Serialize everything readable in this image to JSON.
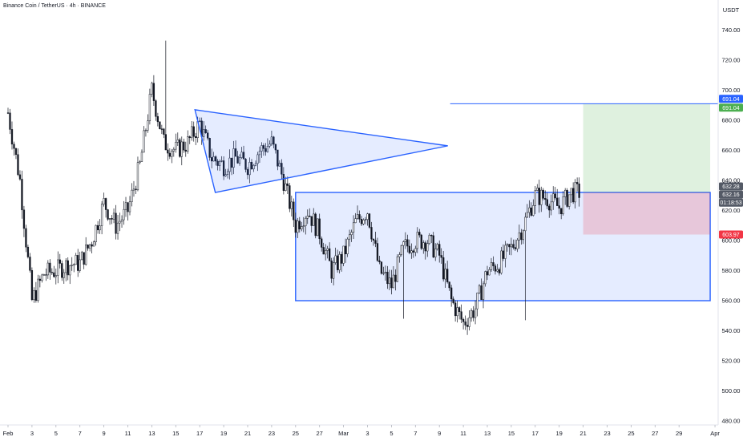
{
  "header": {
    "title": "Binance Coin / TetherUS · 4h · BINANCE"
  },
  "price_axis": {
    "currency": "USDT",
    "ticks": [
      "480.00",
      "500.00",
      "520.00",
      "540.00",
      "560.00",
      "580.00",
      "600.00",
      "620.00",
      "640.00",
      "660.00",
      "680.00",
      "700.00",
      "720.00",
      "740.00"
    ],
    "tag_target": "691.04",
    "tag_alert": "691.04",
    "tag_last": "632.28",
    "tag_current": "632.16",
    "tag_countdown": "01:18:53",
    "tag_stop": "603.97"
  },
  "time_axis": {
    "labels": [
      "Feb",
      "3",
      "5",
      "7",
      "9",
      "11",
      "13",
      "15",
      "17",
      "19",
      "21",
      "23",
      "25",
      "27",
      "Mar",
      "3",
      "5",
      "7",
      "9",
      "11",
      "13",
      "15",
      "17",
      "19",
      "21",
      "23",
      "25",
      "27",
      "29",
      "Apr"
    ]
  },
  "colors": {
    "up": "#131722",
    "down": "#131722",
    "pattern": "#2962ff",
    "pattern_fill": "rgba(41,98,255,0.12)",
    "target_fill": "rgba(76,175,80,0.18)",
    "stop_fill": "rgba(242,54,69,0.2)",
    "tag_blue": "#2962ff",
    "tag_green": "#4caf50",
    "tag_red": "#f23645",
    "tag_grey": "#545a66"
  },
  "chart_data": {
    "type": "candlestick",
    "symbol": "BNB/USDT",
    "interval": "4h",
    "ylim": [
      475,
      755
    ],
    "xlim": [
      "Feb 1",
      "Apr 1"
    ],
    "closes_by_day": [
      {
        "day": "Feb 1",
        "close": 685
      },
      {
        "day": "Feb 2",
        "close": 640
      },
      {
        "day": "Feb 3",
        "close": 560
      },
      {
        "day": "Feb 4",
        "close": 578
      },
      {
        "day": "Feb 5",
        "close": 580
      },
      {
        "day": "Feb 6",
        "close": 584
      },
      {
        "day": "Feb 7",
        "close": 585
      },
      {
        "day": "Feb 8",
        "close": 600
      },
      {
        "day": "Feb 9",
        "close": 625
      },
      {
        "day": "Feb 10",
        "close": 610
      },
      {
        "day": "Feb 11",
        "close": 620
      },
      {
        "day": "Feb 12",
        "close": 650
      },
      {
        "day": "Feb 13",
        "close": 700
      },
      {
        "day": "Feb 14",
        "close": 665
      },
      {
        "day": "Feb 15",
        "close": 660
      },
      {
        "day": "Feb 16",
        "close": 665
      },
      {
        "day": "Feb 17",
        "close": 678
      },
      {
        "day": "Feb 18",
        "close": 655
      },
      {
        "day": "Feb 19",
        "close": 650
      },
      {
        "day": "Feb 20",
        "close": 655
      },
      {
        "day": "Feb 21",
        "close": 650
      },
      {
        "day": "Feb 22",
        "close": 660
      },
      {
        "day": "Feb 23",
        "close": 665
      },
      {
        "day": "Feb 24",
        "close": 640
      },
      {
        "day": "Feb 25",
        "close": 610
      },
      {
        "day": "Feb 26",
        "close": 620
      },
      {
        "day": "Feb 27",
        "close": 605
      },
      {
        "day": "Feb 28",
        "close": 580
      },
      {
        "day": "Mar 1",
        "close": 590
      },
      {
        "day": "Mar 2",
        "close": 612
      },
      {
        "day": "Mar 3",
        "close": 620
      },
      {
        "day": "Mar 4",
        "close": 580
      },
      {
        "day": "Mar 5",
        "close": 570
      },
      {
        "day": "Mar 6",
        "close": 595
      },
      {
        "day": "Mar 7",
        "close": 600
      },
      {
        "day": "Mar 8",
        "close": 600
      },
      {
        "day": "Mar 9",
        "close": 590
      },
      {
        "day": "Mar 10",
        "close": 560
      },
      {
        "day": "Mar 11",
        "close": 545
      },
      {
        "day": "Mar 12",
        "close": 555
      },
      {
        "day": "Mar 13",
        "close": 580
      },
      {
        "day": "Mar 14",
        "close": 585
      },
      {
        "day": "Mar 15",
        "close": 595
      },
      {
        "day": "Mar 16",
        "close": 610
      },
      {
        "day": "Mar 17",
        "close": 630
      },
      {
        "day": "Mar 18",
        "close": 628
      },
      {
        "day": "Mar 19",
        "close": 622
      },
      {
        "day": "Mar 20",
        "close": 632
      }
    ],
    "drawings": {
      "triangle": [
        [
          "Feb 16.6",
          687
        ],
        [
          "Feb 18.3",
          632
        ],
        [
          "Mar 9.7",
          663
        ]
      ],
      "range_box": {
        "x": [
          "Feb 25",
          "Mar 31.6"
        ],
        "y": [
          560,
          632
        ]
      },
      "target_zone": {
        "x": [
          "Mar 21",
          "Mar 31.6"
        ],
        "y": [
          632,
          691
        ]
      },
      "stop_zone": {
        "x": [
          "Mar 21",
          "Mar 31.6"
        ],
        "y": [
          604,
          632
        ]
      },
      "target_line": {
        "x": [
          "Mar 9.9",
          "Apr 1"
        ],
        "y": 691
      }
    }
  }
}
